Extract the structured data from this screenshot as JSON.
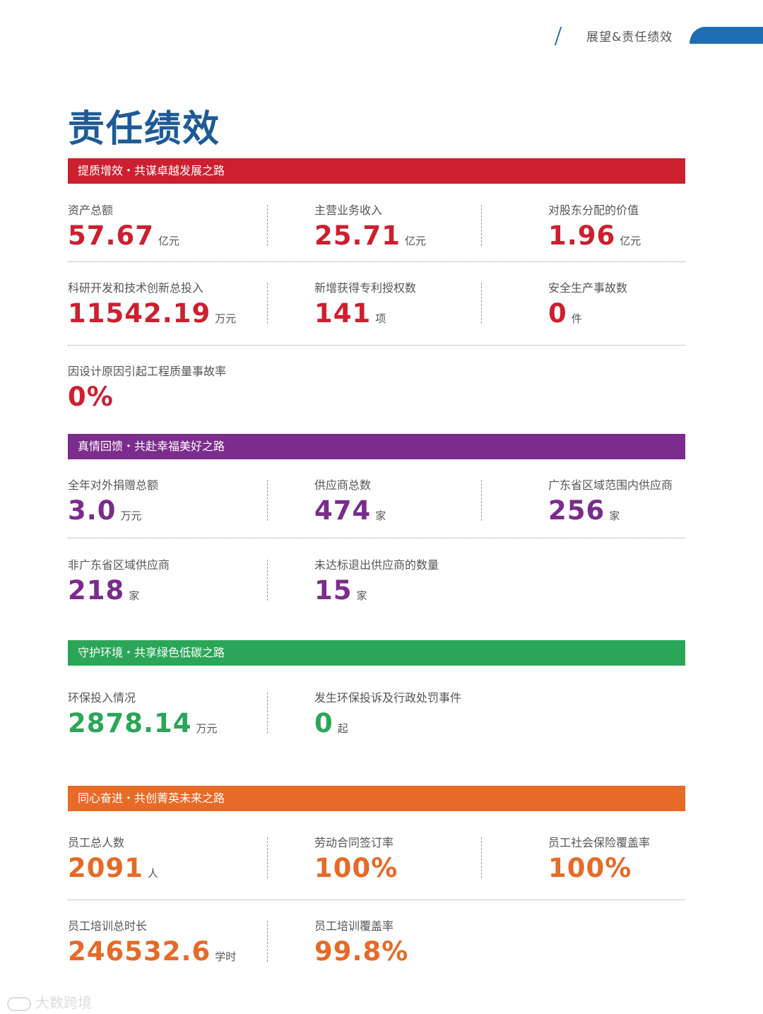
{
  "header": {
    "section": "展望&责任绩效"
  },
  "page_title": "责任绩效",
  "colors": {
    "red": "#cc2030",
    "purple": "#7b2c8c",
    "green": "#2ba659",
    "orange": "#e76a27",
    "title_blue": "#1e5b96"
  },
  "sections": [
    {
      "title": "提质增效・共谋卓越发展之路",
      "stats": [
        {
          "label": "资产总额",
          "value": "57.67",
          "unit": "亿元"
        },
        {
          "label": "主营业务收入",
          "value": "25.71",
          "unit": "亿元"
        },
        {
          "label": "对股东分配的价值",
          "value": "1.96",
          "unit": "亿元"
        },
        {
          "label": "科研开发和技术创新总投入",
          "value": "11542.19",
          "unit": "万元"
        },
        {
          "label": "新增获得专利授权数",
          "value": "141",
          "unit": "项"
        },
        {
          "label": "安全生产事故数",
          "value": "0",
          "unit": "件"
        },
        {
          "label": "因设计原因引起工程质量事故率",
          "value": "0%",
          "unit": ""
        }
      ]
    },
    {
      "title": "真情回馈・共赴幸福美好之路",
      "stats": [
        {
          "label": "全年对外捐赠总额",
          "value": "3.0",
          "unit": "万元"
        },
        {
          "label": "供应商总数",
          "value": "474",
          "unit": "家"
        },
        {
          "label": "广东省区域范围内供应商",
          "value": "256",
          "unit": "家"
        },
        {
          "label": "非广东省区域供应商",
          "value": "218",
          "unit": "家"
        },
        {
          "label": "未达标退出供应商的数量",
          "value": "15",
          "unit": "家"
        }
      ]
    },
    {
      "title": "守护环境・共享绿色低碳之路",
      "stats": [
        {
          "label": "环保投入情况",
          "value": "2878.14",
          "unit": "万元"
        },
        {
          "label": "发生环保投诉及行政处罚事件",
          "value": "0",
          "unit": "起"
        }
      ]
    },
    {
      "title": "同心奋进・共创菁英未来之路",
      "stats": [
        {
          "label": "员工总人数",
          "value": "2091",
          "unit": "人"
        },
        {
          "label": "劳动合同签订率",
          "value": "100%",
          "unit": ""
        },
        {
          "label": "员工社会保险覆盖率",
          "value": "100%",
          "unit": ""
        },
        {
          "label": "员工培训总时长",
          "value": "246532.6",
          "unit": "学时"
        },
        {
          "label": "员工培训覆盖率",
          "value": "99.8%",
          "unit": ""
        }
      ]
    }
  ],
  "watermark": {
    "text": "大数跨境"
  }
}
